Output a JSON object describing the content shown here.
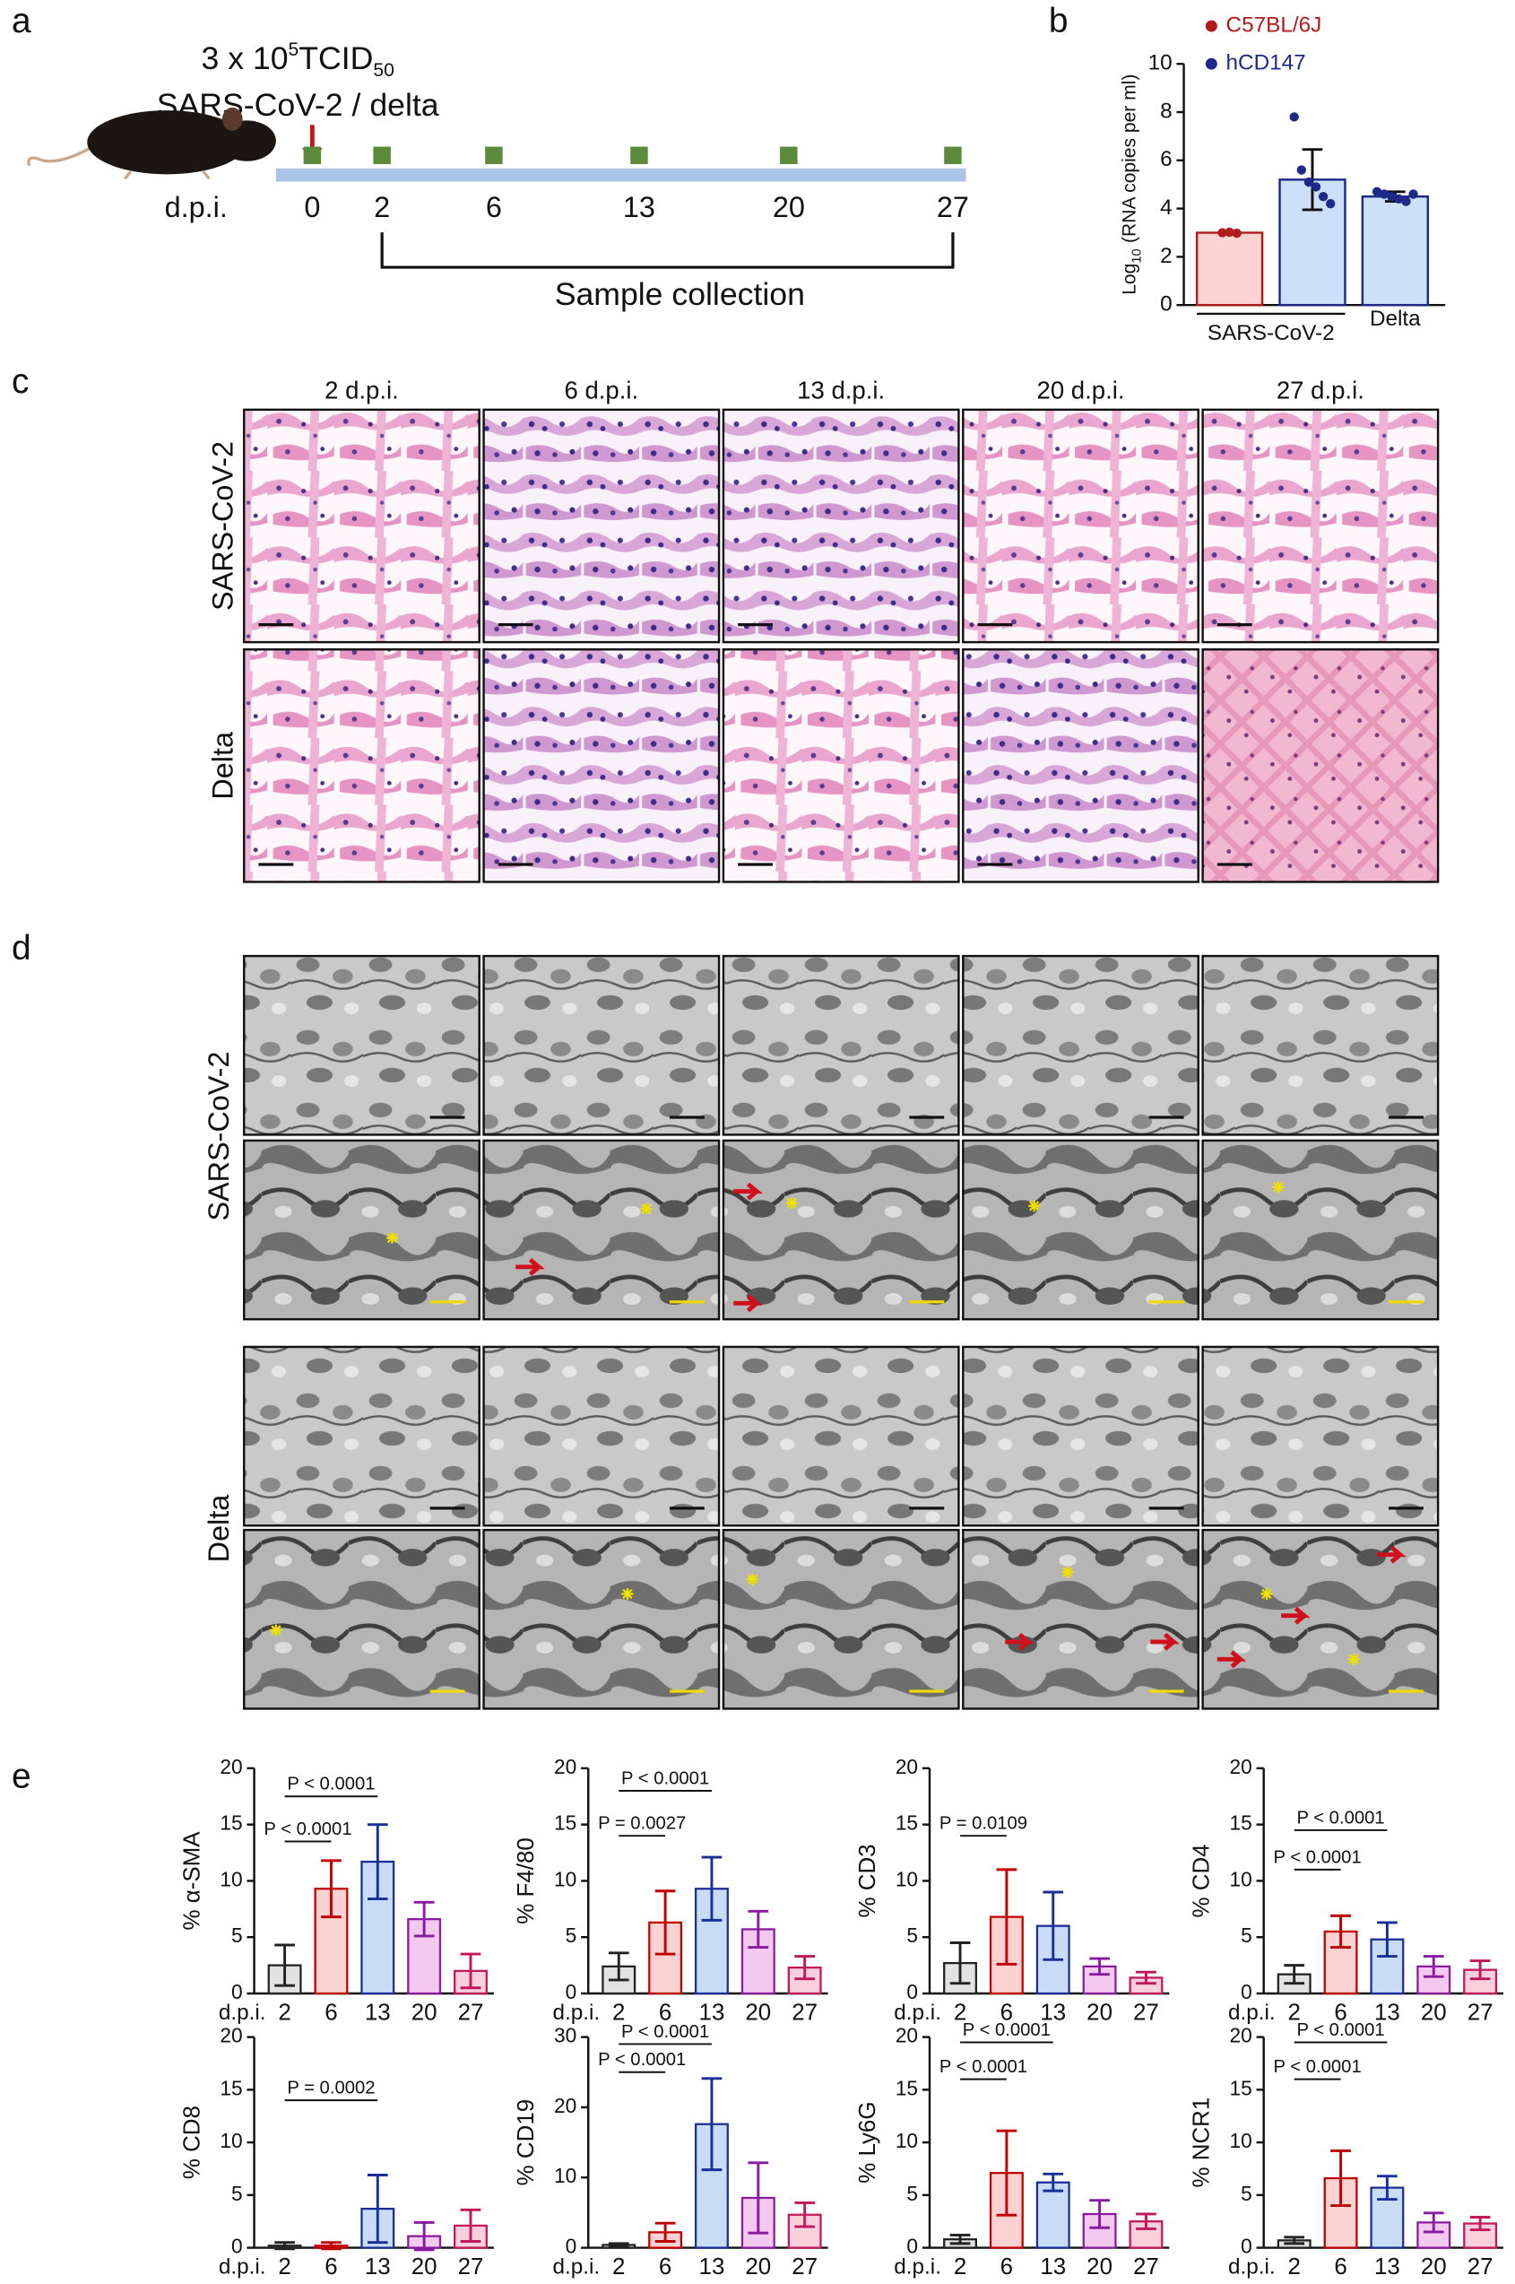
{
  "panel_labels": [
    "a",
    "b",
    "c",
    "d",
    "e"
  ],
  "panel_a": {
    "dose": "3 x 10",
    "dose_exp": "5",
    "unit": "TCID",
    "unit_sub": "50",
    "virus": "SARS-CoV-2 / delta",
    "axis_label": "d.p.i.",
    "days": [
      "0",
      "2",
      "6",
      "13",
      "20",
      "27"
    ],
    "bracket_label": "Sample collection"
  },
  "micrographs": {
    "c": {
      "columns": [
        "2 d.p.i.",
        "6 d.p.i.",
        "13 d.p.i.",
        "20 d.p.i.",
        "27 d.p.i."
      ],
      "rows": [
        "SARS-CoV-2",
        "Delta"
      ]
    },
    "d": {
      "columns": [
        "2 d.p.i.",
        "6 d.p.i.",
        "13 d.p.i.",
        "20 d.p.i.",
        "27 d.p.i."
      ],
      "rows": [
        "SARS-CoV-2",
        "Delta"
      ]
    }
  },
  "panel_e_style": {
    "colors": [
      "#222222",
      "#c00000",
      "#1a2e9a",
      "#8a1aa0",
      "#c0185a"
    ],
    "fills": [
      "#e2e2e2",
      "#fbd2d2",
      "#c9dcf5",
      "#f3c9f0",
      "#f9d0dc"
    ]
  },
  "chart_data": [
    {
      "type": "grouped-bar",
      "y_label": [
        "Log",
        "10",
        "(RNA copies per ml)"
      ],
      "categories": [
        "SARS-CoV-2",
        "Delta"
      ],
      "series": [
        {
          "name": "C57BL/6J",
          "color": "#b01c1c",
          "fill": "#fcd3d3",
          "values": [
            3.0,
            null
          ],
          "errors": [
            0.05,
            null
          ],
          "points": [
            [
              3.0,
              3.02,
              2.98
            ],
            null
          ]
        },
        {
          "name": "hCD147",
          "color": "#1e2a8a",
          "fill": "#cce0f8",
          "values": [
            5.2,
            4.5
          ],
          "errors": [
            1.25,
            0.2
          ],
          "points": [
            [
              7.8,
              5.6,
              5.1,
              4.9,
              4.5,
              4.2
            ],
            [
              4.7,
              4.6,
              4.5,
              4.4,
              4.3,
              4.6
            ]
          ]
        }
      ],
      "ylim": [
        0,
        10
      ],
      "yticks": [
        0,
        2,
        4,
        6,
        8,
        10
      ]
    },
    {
      "type": "bar",
      "y_label": "% α-SMA",
      "x_label": "d.p.i.",
      "categories": [
        "2",
        "6",
        "13",
        "20",
        "27"
      ],
      "values": [
        2.5,
        9.3,
        11.7,
        6.6,
        2.0
      ],
      "errors": [
        1.8,
        2.5,
        3.3,
        1.5,
        1.5
      ],
      "ylim": [
        0,
        20
      ],
      "yticks": [
        0,
        5,
        10,
        15,
        20
      ],
      "annotations": [
        {
          "label": "P < 0.0001",
          "from": 0,
          "to": 1,
          "y": 13.5
        },
        {
          "label": "P < 0.0001",
          "from": 0,
          "to": 2,
          "y": 17.5
        }
      ]
    },
    {
      "type": "bar",
      "y_label": "% F4/80",
      "x_label": "d.p.i.",
      "categories": [
        "2",
        "6",
        "13",
        "20",
        "27"
      ],
      "values": [
        2.4,
        6.3,
        9.3,
        5.7,
        2.3
      ],
      "errors": [
        1.2,
        2.8,
        2.8,
        1.6,
        1.0
      ],
      "ylim": [
        0,
        20
      ],
      "yticks": [
        0,
        5,
        10,
        15,
        20
      ],
      "annotations": [
        {
          "label": "P = 0.0027",
          "from": 0,
          "to": 1,
          "y": 14
        },
        {
          "label": "P < 0.0001",
          "from": 0,
          "to": 2,
          "y": 18
        }
      ]
    },
    {
      "type": "bar",
      "y_label": "% CD3",
      "x_label": "d.p.i.",
      "categories": [
        "2",
        "6",
        "13",
        "20",
        "27"
      ],
      "values": [
        2.7,
        6.8,
        6.0,
        2.4,
        1.4
      ],
      "errors": [
        1.8,
        4.2,
        3.0,
        0.7,
        0.5
      ],
      "ylim": [
        0,
        20
      ],
      "yticks": [
        0,
        5,
        10,
        15,
        20
      ],
      "annotations": [
        {
          "label": "P = 0.0109",
          "from": 0,
          "to": 1,
          "y": 14
        }
      ]
    },
    {
      "type": "bar",
      "y_label": "% CD4",
      "x_label": "d.p.i.",
      "categories": [
        "2",
        "6",
        "13",
        "20",
        "27"
      ],
      "values": [
        1.7,
        5.5,
        4.8,
        2.4,
        2.1
      ],
      "errors": [
        0.8,
        1.4,
        1.5,
        0.9,
        0.8
      ],
      "ylim": [
        0,
        20
      ],
      "yticks": [
        0,
        5,
        10,
        15,
        20
      ],
      "annotations": [
        {
          "label": "P < 0.0001",
          "from": 0,
          "to": 1,
          "y": 11
        },
        {
          "label": "P < 0.0001",
          "from": 0,
          "to": 2,
          "y": 14.5
        }
      ]
    },
    {
      "type": "bar",
      "y_label": "% CD8",
      "x_label": "d.p.i.",
      "categories": [
        "2",
        "6",
        "13",
        "20",
        "27"
      ],
      "values": [
        0.2,
        0.2,
        3.7,
        1.1,
        2.1
      ],
      "errors": [
        0.3,
        0.3,
        3.2,
        1.3,
        1.5
      ],
      "ylim": [
        0,
        20
      ],
      "yticks": [
        0,
        5,
        10,
        15,
        20
      ],
      "annotations": [
        {
          "label": "P = 0.0002",
          "from": 0,
          "to": 2,
          "y": 14
        }
      ]
    },
    {
      "type": "bar",
      "y_label": "% CD19",
      "x_label": "d.p.i.",
      "categories": [
        "2",
        "6",
        "13",
        "20",
        "27"
      ],
      "values": [
        0.4,
        2.2,
        17.6,
        7.1,
        4.7
      ],
      "errors": [
        0.2,
        1.3,
        6.5,
        5.0,
        1.7
      ],
      "ylim": [
        0,
        30
      ],
      "yticks": [
        0,
        10,
        20,
        30
      ],
      "annotations": [
        {
          "label": "P < 0.0001",
          "from": 0,
          "to": 1,
          "y": 25
        },
        {
          "label": "P < 0.0001",
          "from": 0,
          "to": 2,
          "y": 29
        }
      ]
    },
    {
      "type": "bar",
      "y_label": "% Ly6G",
      "x_label": "d.p.i.",
      "categories": [
        "2",
        "6",
        "13",
        "20",
        "27"
      ],
      "values": [
        0.8,
        7.1,
        6.2,
        3.2,
        2.5
      ],
      "errors": [
        0.4,
        4.0,
        0.8,
        1.3,
        0.7
      ],
      "ylim": [
        0,
        20
      ],
      "yticks": [
        0,
        5,
        10,
        15,
        20
      ],
      "annotations": [
        {
          "label": "P < 0.0001",
          "from": 0,
          "to": 1,
          "y": 16
        },
        {
          "label": "P < 0.0001",
          "from": 0,
          "to": 2,
          "y": 19.5
        }
      ]
    },
    {
      "type": "bar",
      "y_label": "% NCR1",
      "x_label": "d.p.i.",
      "categories": [
        "2",
        "6",
        "13",
        "20",
        "27"
      ],
      "values": [
        0.7,
        6.6,
        5.7,
        2.4,
        2.3
      ],
      "errors": [
        0.3,
        2.6,
        1.1,
        0.9,
        0.6
      ],
      "ylim": [
        0,
        20
      ],
      "yticks": [
        0,
        5,
        10,
        15,
        20
      ],
      "annotations": [
        {
          "label": "P < 0.0001",
          "from": 0,
          "to": 1,
          "y": 16
        },
        {
          "label": "P < 0.0001",
          "from": 0,
          "to": 2,
          "y": 19.5
        }
      ]
    }
  ]
}
